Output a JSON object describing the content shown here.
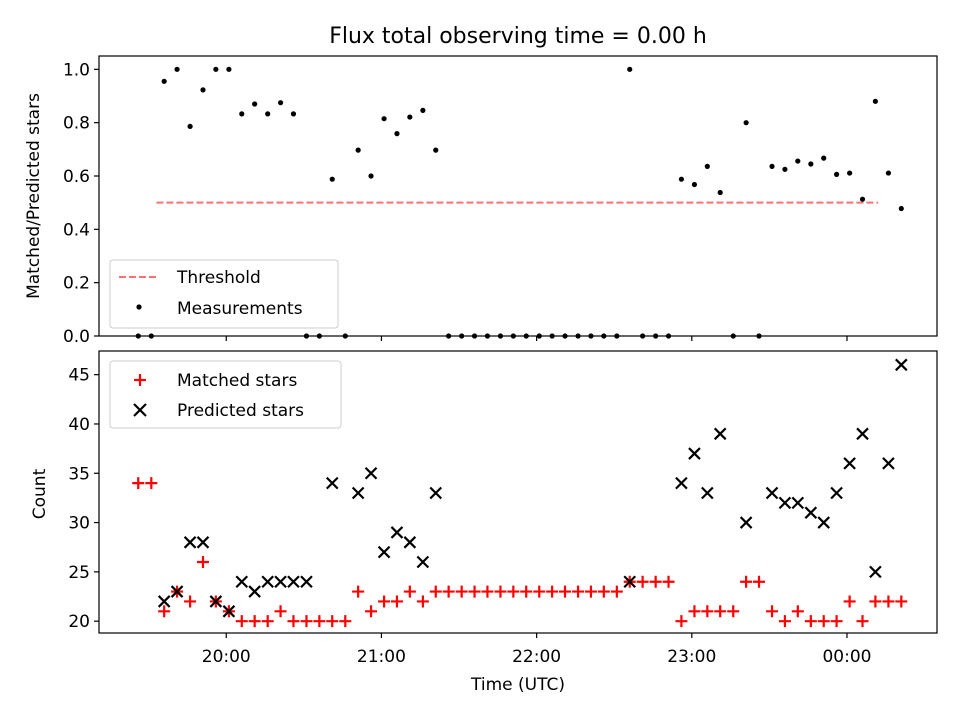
{
  "chart_data": [
    {
      "type": "scatter",
      "title": "Flux total observing time = 0.00 h",
      "ylabel": "Matched/Predicted stars",
      "ylim": [
        0,
        1.05
      ],
      "yticks": [
        "0.0",
        "0.2",
        "0.4",
        "0.6",
        "0.8",
        "1.0"
      ],
      "legend_position": "lower-left",
      "threshold": {
        "name": "Threshold",
        "value": 0.5,
        "x_range": [
          19.55,
          24.2
        ],
        "color": "#ff7070"
      },
      "series": [
        {
          "name": "Measurements",
          "color": "#000000",
          "x": [
            19.433,
            19.517,
            19.6,
            19.683,
            19.767,
            19.85,
            19.933,
            20.017,
            20.1,
            20.183,
            20.267,
            20.35,
            20.433,
            20.517,
            20.6,
            20.683,
            20.767,
            20.85,
            20.933,
            21.017,
            21.1,
            21.183,
            21.267,
            21.35,
            21.433,
            21.517,
            21.6,
            21.683,
            21.767,
            21.85,
            21.933,
            22.017,
            22.1,
            22.183,
            22.267,
            22.35,
            22.433,
            22.517,
            22.6,
            22.683,
            22.767,
            22.85,
            22.933,
            23.017,
            23.1,
            23.183,
            23.267,
            23.35,
            23.433,
            23.517,
            23.6,
            23.683,
            23.767,
            23.85,
            23.933,
            24.017,
            24.1,
            24.183,
            24.267,
            24.35
          ],
          "y": [
            0.0,
            0.0,
            0.955,
            1.0,
            0.786,
            0.923,
            1.0,
            1.0,
            0.833,
            0.87,
            0.833,
            0.875,
            0.833,
            0.0,
            0.0,
            0.588,
            0.0,
            0.697,
            0.6,
            0.815,
            0.759,
            0.821,
            0.846,
            0.697,
            0.0,
            0.0,
            0.0,
            0.0,
            0.0,
            0.0,
            0.0,
            0.0,
            0.0,
            0.0,
            0.0,
            0.0,
            0.0,
            0.0,
            1.0,
            0.0,
            0.0,
            0.0,
            0.588,
            0.568,
            0.636,
            0.538,
            0.0,
            0.8,
            0.0,
            0.636,
            0.625,
            0.656,
            0.645,
            0.667,
            0.606,
            0.611,
            0.513,
            0.88,
            0.611,
            0.478
          ]
        }
      ]
    },
    {
      "type": "scatter",
      "xlabel": "Time (UTC)",
      "ylabel": "Count",
      "xlim": [
        19.18,
        24.58
      ],
      "ylim": [
        18.8,
        47.4
      ],
      "xticks": [
        {
          "value": 20,
          "label": "20:00"
        },
        {
          "value": 21,
          "label": "21:00"
        },
        {
          "value": 22,
          "label": "22:00"
        },
        {
          "value": 23,
          "label": "23:00"
        },
        {
          "value": 24,
          "label": "00:00"
        }
      ],
      "yticks": [
        "20",
        "25",
        "30",
        "35",
        "40",
        "45"
      ],
      "legend_position": "upper-left",
      "series": [
        {
          "name": "Matched stars",
          "marker": "+",
          "color": "#ff0000",
          "x": [
            19.433,
            19.517,
            19.6,
            19.683,
            19.767,
            19.85,
            19.933,
            20.017,
            20.1,
            20.183,
            20.267,
            20.35,
            20.433,
            20.517,
            20.6,
            20.683,
            20.767,
            20.85,
            20.933,
            21.017,
            21.1,
            21.183,
            21.267,
            21.35,
            21.433,
            21.517,
            21.6,
            21.683,
            21.767,
            21.85,
            21.933,
            22.017,
            22.1,
            22.183,
            22.267,
            22.35,
            22.433,
            22.517,
            22.6,
            22.683,
            22.767,
            22.85,
            22.933,
            23.017,
            23.1,
            23.183,
            23.267,
            23.35,
            23.433,
            23.517,
            23.6,
            23.683,
            23.767,
            23.85,
            23.933,
            24.017,
            24.1,
            24.183,
            24.267,
            24.35
          ],
          "y": [
            34,
            34,
            21,
            23,
            22,
            26,
            22,
            21,
            20,
            20,
            20,
            21,
            20,
            20,
            20,
            20,
            20,
            23,
            21,
            22,
            22,
            23,
            22,
            23,
            23,
            23,
            23,
            23,
            23,
            23,
            23,
            23,
            23,
            23,
            23,
            23,
            23,
            23,
            24,
            24,
            24,
            24,
            20,
            21,
            21,
            21,
            21,
            24,
            24,
            21,
            20,
            21,
            20,
            20,
            20,
            22,
            20,
            22,
            22,
            22
          ]
        },
        {
          "name": "Predicted stars",
          "marker": "x",
          "color": "#000000",
          "x": [
            19.6,
            19.683,
            19.767,
            19.85,
            19.933,
            20.017,
            20.1,
            20.183,
            20.267,
            20.35,
            20.433,
            20.517,
            20.683,
            20.85,
            20.933,
            21.017,
            21.1,
            21.183,
            21.267,
            21.35,
            22.6,
            22.933,
            23.017,
            23.1,
            23.183,
            23.35,
            23.517,
            23.6,
            23.683,
            23.767,
            23.85,
            23.933,
            24.017,
            24.1,
            24.183,
            24.267,
            24.35
          ],
          "y": [
            22,
            23,
            28,
            28,
            22,
            21,
            24,
            23,
            24,
            24,
            24,
            24,
            34,
            33,
            35,
            27,
            29,
            28,
            26,
            33,
            24,
            34,
            37,
            33,
            39,
            30,
            33,
            32,
            32,
            31,
            30,
            33,
            36,
            39,
            25,
            36,
            46
          ]
        }
      ]
    }
  ]
}
